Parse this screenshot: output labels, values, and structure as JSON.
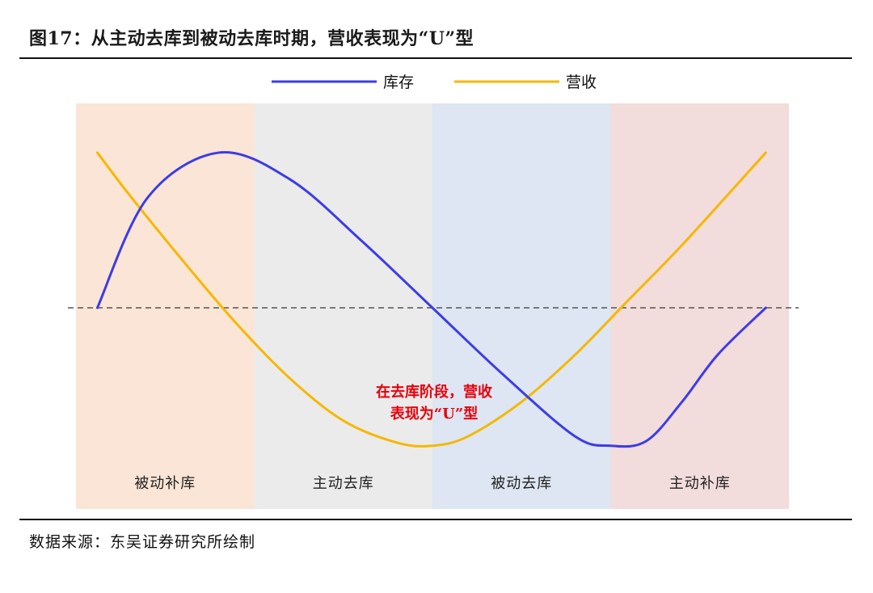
{
  "figure": {
    "title": "图17：从主动去库到被动去库时期，营收表现为“U”型",
    "source": "数据来源：东吴证券研究所绘制"
  },
  "chart_data": {
    "type": "line",
    "title": "",
    "xlabel": "",
    "ylabel": "",
    "grid": false,
    "legend_position": "top-center",
    "x_range": [
      0,
      4
    ],
    "y_range": [
      -1.12,
      1.12
    ],
    "baseline": 0,
    "phases": [
      {
        "label": "被动补库",
        "start": 0,
        "end": 1,
        "color": "#fbe5d6"
      },
      {
        "label": "主动去库",
        "start": 1,
        "end": 2,
        "color": "#ebebeb"
      },
      {
        "label": "被动去库",
        "start": 2,
        "end": 3,
        "color": "#dde6f2"
      },
      {
        "label": "主动补库",
        "start": 3,
        "end": 4,
        "color": "#f2dcdc"
      }
    ],
    "series": [
      {
        "name": "库存",
        "color": "#3c3ce6",
        "x": [
          0.12,
          0.4,
          0.8,
          1.2,
          1.6,
          2.0,
          2.4,
          2.8,
          3.0,
          3.2,
          3.4,
          3.6,
          3.87
        ],
        "y": [
          0.0,
          0.7,
          0.99,
          0.82,
          0.43,
          0.0,
          -0.43,
          -0.82,
          -0.88,
          -0.85,
          -0.6,
          -0.3,
          0.0
        ]
      },
      {
        "name": "营收",
        "color": "#f5b800",
        "x": [
          0.12,
          0.3,
          0.6,
          0.9,
          1.2,
          1.5,
          1.8,
          2.0,
          2.2,
          2.5,
          2.8,
          3.1,
          3.4,
          3.87
        ],
        "y": [
          0.99,
          0.72,
          0.3,
          -0.1,
          -0.45,
          -0.72,
          -0.86,
          -0.88,
          -0.82,
          -0.6,
          -0.3,
          0.05,
          0.4,
          0.99
        ]
      }
    ],
    "annotation": {
      "lines": [
        "在去库阶段，营收",
        "表现为“U”型"
      ],
      "color": "#e8000b"
    }
  },
  "colors": {
    "baseline_dash": "#555555",
    "rule": "#111111"
  }
}
